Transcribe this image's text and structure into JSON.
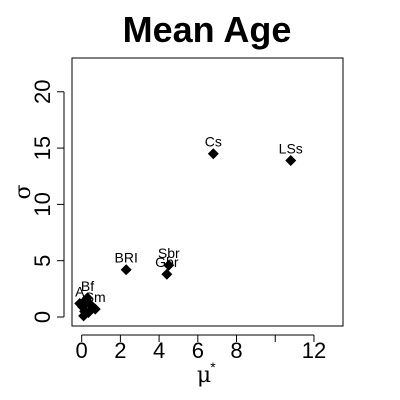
{
  "chart_data": {
    "type": "scatter",
    "title": "Mean Age",
    "xlabel": "μ",
    "xlabel_superscript": "*",
    "ylabel": "σ",
    "xlim": [
      -0.5,
      13.5
    ],
    "ylim": [
      -0.8,
      23
    ],
    "xticks": [
      0,
      2,
      4,
      6,
      8,
      10,
      12
    ],
    "xtick_labels": [
      "0",
      "2",
      "4",
      "6",
      "8",
      "",
      "12"
    ],
    "yticks": [
      0,
      5,
      10,
      15,
      20
    ],
    "ytick_labels": [
      "0",
      "5",
      "10",
      "15",
      "20"
    ],
    "grid": false,
    "marker": "diamond",
    "marker_color": "#000000",
    "points": [
      {
        "x": 6.8,
        "y": 14.5,
        "label": "Cs"
      },
      {
        "x": 10.8,
        "y": 13.9,
        "label": "LSs"
      },
      {
        "x": 2.3,
        "y": 4.2,
        "label": "BRI"
      },
      {
        "x": 4.5,
        "y": 4.6,
        "label": "Sbr"
      },
      {
        "x": 4.4,
        "y": 3.8,
        "label": "Gbr"
      },
      {
        "x": 0.7,
        "y": 0.7,
        "label": "Sm"
      },
      {
        "x": 0.3,
        "y": 1.7,
        "label": "Bf"
      },
      {
        "x": -0.1,
        "y": 1.2,
        "label": "A"
      },
      {
        "x": 0.05,
        "y": 0.9,
        "label": ""
      },
      {
        "x": 0.15,
        "y": 0.5,
        "label": ""
      },
      {
        "x": 0.1,
        "y": 0.1,
        "label": ""
      },
      {
        "x": 0.35,
        "y": 0.4,
        "label": ""
      },
      {
        "x": 0.45,
        "y": 1.1,
        "label": ""
      },
      {
        "x": 0.2,
        "y": 1.5,
        "label": ""
      }
    ]
  }
}
